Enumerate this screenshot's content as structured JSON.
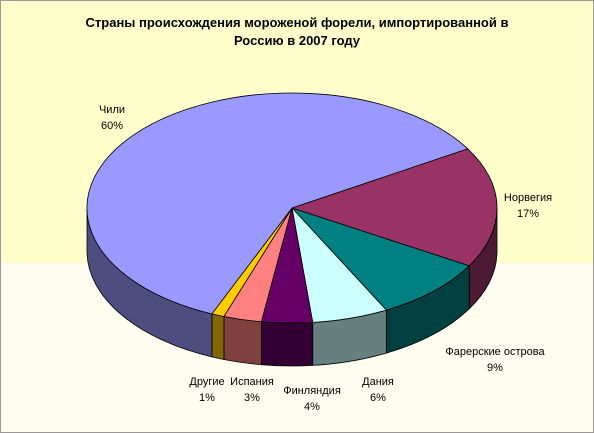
{
  "chart_data": {
    "type": "pie3d",
    "title": "Страны происхождения мороженой форели, импортированной в Россию в 2007 году",
    "categories": [
      "Норвегия",
      "Фарерские острова",
      "Дания",
      "Финляндия",
      "Испания",
      "Другие",
      "Чили"
    ],
    "values": [
      17,
      9,
      6,
      4,
      3,
      1,
      60
    ],
    "value_labels": [
      "17%",
      "9%",
      "6%",
      "4%",
      "3%",
      "1%",
      "60%"
    ],
    "colors": [
      "#993366",
      "#008080",
      "#ccffff",
      "#660066",
      "#ff8080",
      "#ffcc00",
      "#9999ff"
    ]
  }
}
